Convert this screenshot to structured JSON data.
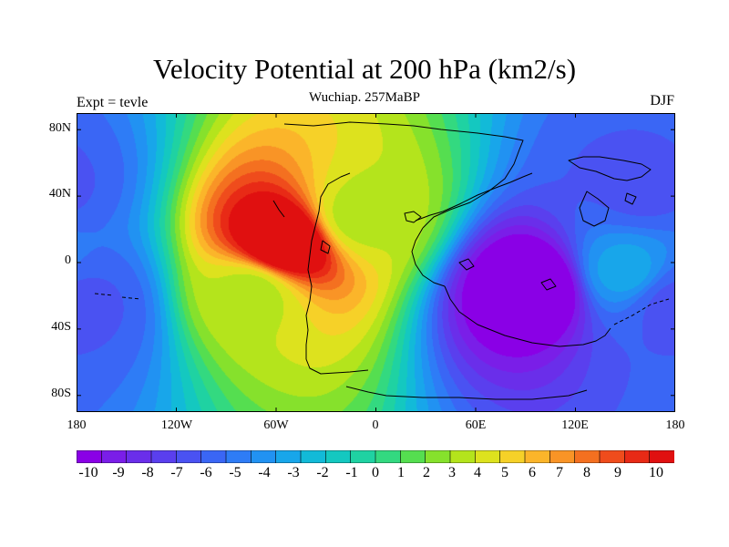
{
  "header": {
    "title": "Velocity Potential at 200 hPa (km2/s)",
    "subtitle": "Wuchiap. 257MaBP",
    "left_label": "Expt = tevle",
    "right_label": "DJF"
  },
  "axes": {
    "y_ticks": [
      "80N",
      "40N",
      "0",
      "40S",
      "80S"
    ],
    "x_ticks": [
      "180",
      "120W",
      "60W",
      "0",
      "60E",
      "120E",
      "180"
    ]
  },
  "colorbar": {
    "labels": [
      "-10",
      "-9",
      "-8",
      "-7",
      "-6",
      "-5",
      "-4",
      "-3",
      "-2",
      "-1",
      "0",
      "1",
      "2",
      "3",
      "4",
      "5",
      "6",
      "7",
      "8",
      "9",
      "10"
    ],
    "colors": [
      "#8a00e6",
      "#7a1ee8",
      "#6a2eea",
      "#5a3fee",
      "#4a52f2",
      "#3a66f5",
      "#2e7cf6",
      "#2192f2",
      "#18a6ea",
      "#12bad8",
      "#14c8c0",
      "#1fd2a2",
      "#33d980",
      "#55de50",
      "#86e12c",
      "#b4e41c",
      "#dde21e",
      "#f6d128",
      "#fbb52a",
      "#f99426",
      "#f47020",
      "#ef4c1c",
      "#e82a16",
      "#e01010"
    ]
  },
  "field": {
    "value_range": [
      -10,
      10
    ],
    "centers": [
      {
        "lon": -55,
        "lat": 12,
        "value": 11.5
      },
      {
        "lon": -75,
        "lat": -18,
        "value": 3
      },
      {
        "lon": -10,
        "lat": 28,
        "value": 3
      },
      {
        "lon": 95,
        "lat": -15,
        "value": -11
      },
      {
        "lon": 150,
        "lat": -5,
        "value": -3
      },
      {
        "lon": 160,
        "lat": 45,
        "value": -6
      },
      {
        "lon": -180,
        "lat": -25,
        "value": -7
      },
      {
        "lon": 180,
        "lat": -25,
        "value": -5
      }
    ]
  }
}
